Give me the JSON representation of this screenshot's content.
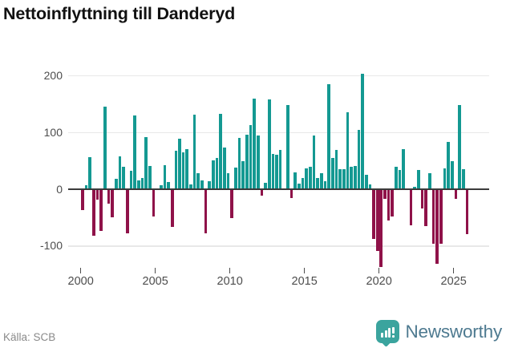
{
  "title": "Nettoinflyttning till Danderyd",
  "source": "Källa: SCB",
  "branding": {
    "name": "Newsworthy",
    "icon": "newsworthy-speech-bubble-chart-icon"
  },
  "colors": {
    "positive": "#149992",
    "negative": "#8F1249",
    "grid": "#E8E8E8",
    "zero_axis": "#3B3B3B",
    "tick_text": "#4D4D4D",
    "title_text": "#111111",
    "source_text": "#8A8A8A",
    "brand_icon": "#3BA49E",
    "brand_text": "#4E7A90"
  },
  "chart_data": {
    "type": "bar",
    "title": "Nettoinflyttning till Danderyd",
    "xlabel": "",
    "ylabel": "",
    "frequency": "quarterly",
    "start_period": "2000Q1",
    "end_period": "2025Q4",
    "x_tick_labels": [
      "2000",
      "2005",
      "2010",
      "2015",
      "2020",
      "2025"
    ],
    "y_ticks": [
      200,
      100,
      0,
      -100
    ],
    "ylim": [
      -160,
      215
    ],
    "grid": "horizontal",
    "legend": "none",
    "values": [
      -36,
      7,
      57,
      -81,
      -17,
      -72,
      145,
      -24,
      -48,
      18,
      58,
      40,
      -76,
      33,
      130,
      15,
      20,
      92,
      41,
      -46,
      0,
      7,
      42,
      13,
      -65,
      68,
      89,
      65,
      71,
      9,
      132,
      28,
      15,
      -76,
      14,
      51,
      55,
      133,
      74,
      28,
      -50,
      38,
      90,
      49,
      96,
      113,
      160,
      94,
      -10,
      12,
      158,
      62,
      61,
      69,
      0,
      148,
      -14,
      30,
      10,
      20,
      37,
      40,
      95,
      20,
      28,
      14,
      185,
      55,
      69,
      35,
      35,
      135,
      39,
      41,
      105,
      204,
      26,
      8,
      -86,
      -108,
      -135,
      -16,
      -53,
      -46,
      40,
      34,
      71,
      0,
      -62,
      4,
      34,
      -33,
      -64,
      28,
      -95,
      -130,
      -95,
      37,
      83,
      49,
      -15,
      148,
      35,
      -78
    ]
  }
}
